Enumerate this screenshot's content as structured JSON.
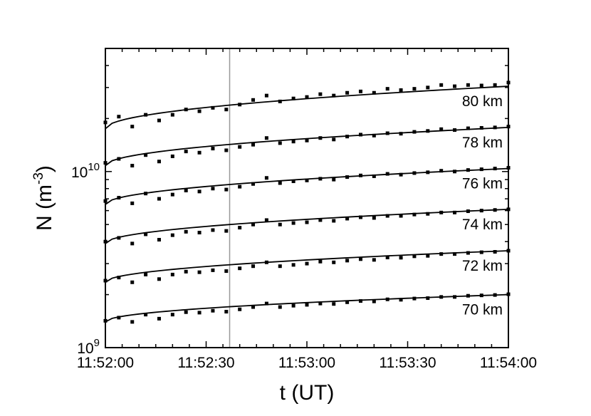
{
  "chart_data": {
    "type": "scatter",
    "x_label": "t (UT)",
    "y_label": {
      "base": "N (m",
      "exponent": "-3",
      "close": ")"
    },
    "x_ticks": [
      "11:52:00",
      "11:52:30",
      "11:53:00",
      "11:53:30",
      "11:54:00"
    ],
    "x_tick_seconds": [
      0,
      30,
      60,
      90,
      120
    ],
    "x_range_seconds": [
      0,
      120
    ],
    "y_scale": "log",
    "y_range": [
      1000000000.0,
      50000000000.0
    ],
    "y_ticks": [
      {
        "value": 1000000000.0,
        "base": "10",
        "exp": "9"
      },
      {
        "value": 10000000000.0,
        "base": "10",
        "exp": "10"
      }
    ],
    "vertical_line_seconds": 37,
    "grid": false,
    "series": [
      {
        "name": "80 km",
        "fit": [
          17500000000.0,
          30500000000.0
        ],
        "points": [
          [
            0,
            19000000000.0
          ],
          [
            4,
            20500000000.0
          ],
          [
            8,
            18000000000.0
          ],
          [
            12,
            21000000000.0
          ],
          [
            16,
            19500000000.0
          ],
          [
            20,
            21000000000.0
          ],
          [
            24,
            22500000000.0
          ],
          [
            28,
            22000000000.0
          ],
          [
            32,
            23000000000.0
          ],
          [
            36,
            22500000000.0
          ],
          [
            40,
            24000000000.0
          ],
          [
            44,
            25500000000.0
          ],
          [
            48,
            27000000000.0
          ],
          [
            52,
            25000000000.0
          ],
          [
            56,
            26000000000.0
          ],
          [
            60,
            26500000000.0
          ],
          [
            64,
            27500000000.0
          ],
          [
            68,
            27000000000.0
          ],
          [
            72,
            28000000000.0
          ],
          [
            76,
            28500000000.0
          ],
          [
            80,
            28000000000.0
          ],
          [
            84,
            29500000000.0
          ],
          [
            88,
            29000000000.0
          ],
          [
            92,
            29500000000.0
          ],
          [
            96,
            30000000000.0
          ],
          [
            100,
            31000000000.0
          ],
          [
            104,
            30500000000.0
          ],
          [
            108,
            31000000000.0
          ],
          [
            112,
            30800000000.0
          ],
          [
            116,
            31000000000.0
          ],
          [
            120,
            32000000000.0
          ]
        ]
      },
      {
        "name": "78 km",
        "fit": [
          10800000000.0,
          17800000000.0
        ],
        "points": [
          [
            0,
            11200000000.0
          ],
          [
            4,
            11800000000.0
          ],
          [
            8,
            10800000000.0
          ],
          [
            12,
            12400000000.0
          ],
          [
            16,
            11400000000.0
          ],
          [
            20,
            12200000000.0
          ],
          [
            24,
            13000000000.0
          ],
          [
            28,
            12800000000.0
          ],
          [
            32,
            13500000000.0
          ],
          [
            36,
            13200000000.0
          ],
          [
            40,
            13800000000.0
          ],
          [
            44,
            14200000000.0
          ],
          [
            48,
            15500000000.0
          ],
          [
            52,
            14500000000.0
          ],
          [
            56,
            14800000000.0
          ],
          [
            60,
            15000000000.0
          ],
          [
            64,
            15500000000.0
          ],
          [
            68,
            15200000000.0
          ],
          [
            72,
            15800000000.0
          ],
          [
            76,
            16200000000.0
          ],
          [
            80,
            16000000000.0
          ],
          [
            84,
            16500000000.0
          ],
          [
            88,
            16400000000.0
          ],
          [
            92,
            16800000000.0
          ],
          [
            96,
            17000000000.0
          ],
          [
            100,
            17400000000.0
          ],
          [
            104,
            17200000000.0
          ],
          [
            108,
            17600000000.0
          ],
          [
            112,
            17700000000.0
          ],
          [
            116,
            17800000000.0
          ],
          [
            120,
            18000000000.0
          ]
        ]
      },
      {
        "name": "76 km",
        "fit": [
          6500000000.0,
          10400000000.0
        ],
        "points": [
          [
            0,
            6800000000.0
          ],
          [
            4,
            7100000000.0
          ],
          [
            8,
            6600000000.0
          ],
          [
            12,
            7500000000.0
          ],
          [
            16,
            7000000000.0
          ],
          [
            20,
            7400000000.0
          ],
          [
            24,
            7800000000.0
          ],
          [
            28,
            7700000000.0
          ],
          [
            32,
            8000000000.0
          ],
          [
            36,
            7900000000.0
          ],
          [
            40,
            8200000000.0
          ],
          [
            44,
            8500000000.0
          ],
          [
            48,
            9200000000.0
          ],
          [
            52,
            8600000000.0
          ],
          [
            56,
            8800000000.0
          ],
          [
            60,
            8900000000.0
          ],
          [
            64,
            9100000000.0
          ],
          [
            68,
            9000000000.0
          ],
          [
            72,
            9300000000.0
          ],
          [
            76,
            9500000000.0
          ],
          [
            80,
            9400000000.0
          ],
          [
            84,
            9700000000.0
          ],
          [
            88,
            9600000000.0
          ],
          [
            92,
            9800000000.0
          ],
          [
            96,
            9900000000.0
          ],
          [
            100,
            10100000000.0
          ],
          [
            104,
            10000000000.0
          ],
          [
            108,
            10200000000.0
          ],
          [
            112,
            10300000000.0
          ],
          [
            116,
            10400000000.0
          ],
          [
            120,
            10500000000.0
          ]
        ]
      },
      {
        "name": "74 km",
        "fit": [
          3900000000.0,
          6100000000.0
        ],
        "points": [
          [
            0,
            4000000000.0
          ],
          [
            4,
            4200000000.0
          ],
          [
            8,
            3900000000.0
          ],
          [
            12,
            4400000000.0
          ],
          [
            16,
            4100000000.0
          ],
          [
            20,
            4350000000.0
          ],
          [
            24,
            4550000000.0
          ],
          [
            28,
            4500000000.0
          ],
          [
            32,
            4650000000.0
          ],
          [
            36,
            4600000000.0
          ],
          [
            40,
            4800000000.0
          ],
          [
            44,
            5000000000.0
          ],
          [
            48,
            5300000000.0
          ],
          [
            52,
            5000000000.0
          ],
          [
            56,
            5100000000.0
          ],
          [
            60,
            5150000000.0
          ],
          [
            64,
            5300000000.0
          ],
          [
            68,
            5250000000.0
          ],
          [
            72,
            5400000000.0
          ],
          [
            76,
            5500000000.0
          ],
          [
            80,
            5450000000.0
          ],
          [
            84,
            5600000000.0
          ],
          [
            88,
            5600000000.0
          ],
          [
            92,
            5700000000.0
          ],
          [
            96,
            5750000000.0
          ],
          [
            100,
            5850000000.0
          ],
          [
            104,
            5850000000.0
          ],
          [
            108,
            5950000000.0
          ],
          [
            112,
            6000000000.0
          ],
          [
            116,
            6050000000.0
          ],
          [
            120,
            6100000000.0
          ]
        ]
      },
      {
        "name": "72 km",
        "fit": [
          2350000000.0,
          3550000000.0
        ],
        "points": [
          [
            0,
            2400000000.0
          ],
          [
            4,
            2500000000.0
          ],
          [
            8,
            2350000000.0
          ],
          [
            12,
            2600000000.0
          ],
          [
            16,
            2450000000.0
          ],
          [
            20,
            2600000000.0
          ],
          [
            24,
            2700000000.0
          ],
          [
            28,
            2680000000.0
          ],
          [
            32,
            2750000000.0
          ],
          [
            36,
            2720000000.0
          ],
          [
            40,
            2820000000.0
          ],
          [
            44,
            2900000000.0
          ],
          [
            48,
            3050000000.0
          ],
          [
            52,
            2900000000.0
          ],
          [
            56,
            2950000000.0
          ],
          [
            60,
            3000000000.0
          ],
          [
            64,
            3080000000.0
          ],
          [
            68,
            3050000000.0
          ],
          [
            72,
            3120000000.0
          ],
          [
            76,
            3180000000.0
          ],
          [
            80,
            3150000000.0
          ],
          [
            84,
            3250000000.0
          ],
          [
            88,
            3240000000.0
          ],
          [
            92,
            3300000000.0
          ],
          [
            96,
            3320000000.0
          ],
          [
            100,
            3400000000.0
          ],
          [
            104,
            3400000000.0
          ],
          [
            108,
            3450000000.0
          ],
          [
            112,
            3480000000.0
          ],
          [
            116,
            3500000000.0
          ],
          [
            120,
            3550000000.0
          ]
        ]
      },
      {
        "name": "70 km",
        "fit": [
          1400000000.0,
          2000000000.0
        ],
        "points": [
          [
            0,
            1420000000.0
          ],
          [
            4,
            1480000000.0
          ],
          [
            8,
            1400000000.0
          ],
          [
            12,
            1540000000.0
          ],
          [
            16,
            1460000000.0
          ],
          [
            20,
            1540000000.0
          ],
          [
            24,
            1590000000.0
          ],
          [
            28,
            1580000000.0
          ],
          [
            32,
            1620000000.0
          ],
          [
            36,
            1600000000.0
          ],
          [
            40,
            1650000000.0
          ],
          [
            44,
            1700000000.0
          ],
          [
            48,
            1780000000.0
          ],
          [
            52,
            1700000000.0
          ],
          [
            56,
            1730000000.0
          ],
          [
            60,
            1750000000.0
          ],
          [
            64,
            1780000000.0
          ],
          [
            68,
            1770000000.0
          ],
          [
            72,
            1810000000.0
          ],
          [
            76,
            1840000000.0
          ],
          [
            80,
            1830000000.0
          ],
          [
            84,
            1880000000.0
          ],
          [
            88,
            1870000000.0
          ],
          [
            92,
            1900000000.0
          ],
          [
            96,
            1910000000.0
          ],
          [
            100,
            1940000000.0
          ],
          [
            104,
            1940000000.0
          ],
          [
            108,
            1970000000.0
          ],
          [
            112,
            1980000000.0
          ],
          [
            116,
            1990000000.0
          ],
          [
            120,
            2010000000.0
          ]
        ]
      }
    ]
  }
}
